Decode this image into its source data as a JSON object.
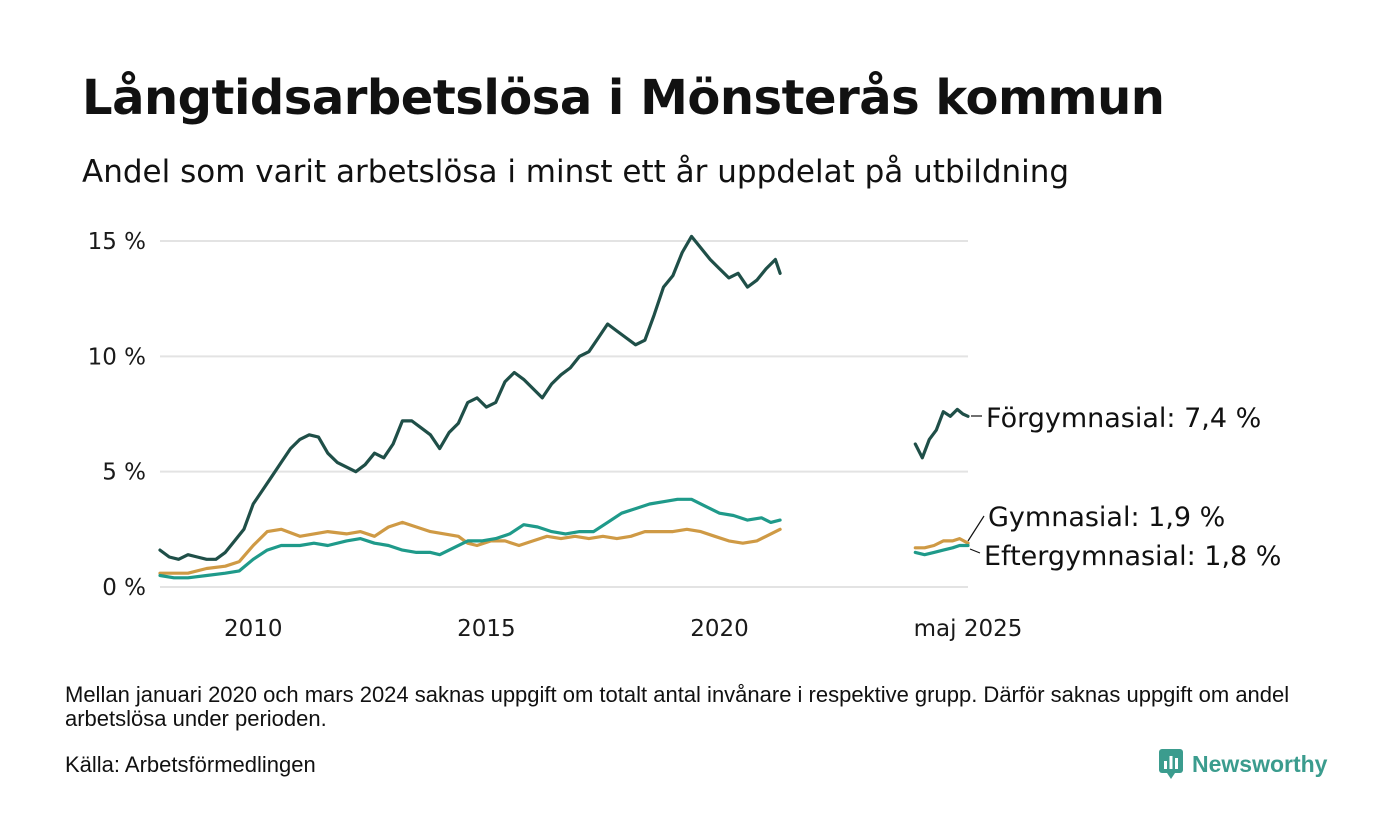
{
  "header": {
    "title": "Långtidsarbetslösa i Mönsterås kommun",
    "subtitle": "Andel som varit arbetslösa i minst ett år uppdelat på utbildning"
  },
  "footer": {
    "note": "Mellan januari 2020 och mars 2024 saknas uppgift om totalt antal invånare i respektive grupp. Därför saknas uppgift om andel arbetslösa under perioden.",
    "source": "Källa: Arbetsförmedlingen",
    "brand": "Newsworthy",
    "brand_icon": "newsworthy-logo-icon",
    "brand_color": "#3b9c8e"
  },
  "chart_data": {
    "type": "line",
    "title": "Långtidsarbetslösa i Mönsterås kommun",
    "subtitle": "Andel som varit arbetslösa i minst ett år uppdelat på utbildning",
    "xlabel": "",
    "ylabel": "",
    "ylim": [
      0,
      15
    ],
    "y_ticks": [
      {
        "value": 0,
        "label": "0 %"
      },
      {
        "value": 5,
        "label": "5 %"
      },
      {
        "value": 10,
        "label": "10 %"
      },
      {
        "value": 15,
        "label": "15 %"
      }
    ],
    "x_ticks": [
      {
        "value": 2010,
        "label": "2010"
      },
      {
        "value": 2015,
        "label": "2015"
      },
      {
        "value": 2020,
        "label": "2020"
      },
      {
        "value": 2025.33,
        "label": "maj 2025"
      }
    ],
    "xlim": [
      2008.0,
      2025.33
    ],
    "grid": true,
    "series": [
      {
        "name": "Förgymnasial",
        "end_label": "Förgymnasial: 7,4 %",
        "color": "#1f4f48",
        "segments": [
          [
            [
              2008.0,
              1.6
            ],
            [
              2008.2,
              1.3
            ],
            [
              2008.4,
              1.2
            ],
            [
              2008.6,
              1.4
            ],
            [
              2008.8,
              1.3
            ],
            [
              2009.0,
              1.2
            ],
            [
              2009.2,
              1.2
            ],
            [
              2009.4,
              1.5
            ],
            [
              2009.6,
              2.0
            ],
            [
              2009.8,
              2.5
            ],
            [
              2010.0,
              3.6
            ],
            [
              2010.2,
              4.2
            ],
            [
              2010.4,
              4.8
            ],
            [
              2010.6,
              5.4
            ],
            [
              2010.8,
              6.0
            ],
            [
              2011.0,
              6.4
            ],
            [
              2011.2,
              6.6
            ],
            [
              2011.4,
              6.5
            ],
            [
              2011.6,
              5.8
            ],
            [
              2011.8,
              5.4
            ],
            [
              2012.0,
              5.2
            ],
            [
              2012.2,
              5.0
            ],
            [
              2012.4,
              5.3
            ],
            [
              2012.6,
              5.8
            ],
            [
              2012.8,
              5.6
            ],
            [
              2013.0,
              6.2
            ],
            [
              2013.2,
              7.2
            ],
            [
              2013.4,
              7.2
            ],
            [
              2013.6,
              6.9
            ],
            [
              2013.8,
              6.6
            ],
            [
              2014.0,
              6.0
            ],
            [
              2014.2,
              6.7
            ],
            [
              2014.4,
              7.1
            ],
            [
              2014.6,
              8.0
            ],
            [
              2014.8,
              8.2
            ],
            [
              2015.0,
              7.8
            ],
            [
              2015.2,
              8.0
            ],
            [
              2015.4,
              8.9
            ],
            [
              2015.6,
              9.3
            ],
            [
              2015.8,
              9.0
            ],
            [
              2016.0,
              8.6
            ],
            [
              2016.2,
              8.2
            ],
            [
              2016.4,
              8.8
            ],
            [
              2016.6,
              9.2
            ],
            [
              2016.8,
              9.5
            ],
            [
              2017.0,
              10.0
            ],
            [
              2017.2,
              10.2
            ],
            [
              2017.4,
              10.8
            ],
            [
              2017.6,
              11.4
            ],
            [
              2017.8,
              11.1
            ],
            [
              2018.0,
              10.8
            ],
            [
              2018.2,
              10.5
            ],
            [
              2018.4,
              10.7
            ],
            [
              2018.6,
              11.8
            ],
            [
              2018.8,
              13.0
            ],
            [
              2019.0,
              13.5
            ],
            [
              2019.2,
              14.5
            ],
            [
              2019.4,
              15.2
            ],
            [
              2019.6,
              14.7
            ],
            [
              2019.8,
              14.2
            ],
            [
              2020.0,
              13.8
            ],
            [
              2020.2,
              13.4
            ],
            [
              2020.4,
              13.6
            ],
            [
              2020.6,
              13.0
            ],
            [
              2020.8,
              13.3
            ],
            [
              2021.0,
              13.8
            ],
            [
              2021.2,
              14.2
            ],
            [
              2021.3,
              13.6
            ]
          ],
          [
            [
              2024.2,
              6.2
            ],
            [
              2024.35,
              5.6
            ],
            [
              2024.5,
              6.4
            ],
            [
              2024.65,
              6.8
            ],
            [
              2024.8,
              7.6
            ],
            [
              2024.95,
              7.4
            ],
            [
              2025.1,
              7.7
            ],
            [
              2025.22,
              7.5
            ],
            [
              2025.33,
              7.4
            ]
          ]
        ]
      },
      {
        "name": "Gymnasial",
        "end_label": "Gymnasial: 1,9 %",
        "color": "#cf9a45",
        "segments": [
          [
            [
              2008.0,
              0.6
            ],
            [
              2008.3,
              0.6
            ],
            [
              2008.6,
              0.6
            ],
            [
              2009.0,
              0.8
            ],
            [
              2009.4,
              0.9
            ],
            [
              2009.7,
              1.1
            ],
            [
              2010.0,
              1.8
            ],
            [
              2010.3,
              2.4
            ],
            [
              2010.6,
              2.5
            ],
            [
              2011.0,
              2.2
            ],
            [
              2011.3,
              2.3
            ],
            [
              2011.6,
              2.4
            ],
            [
              2012.0,
              2.3
            ],
            [
              2012.3,
              2.4
            ],
            [
              2012.6,
              2.2
            ],
            [
              2012.9,
              2.6
            ],
            [
              2013.2,
              2.8
            ],
            [
              2013.5,
              2.6
            ],
            [
              2013.8,
              2.4
            ],
            [
              2014.1,
              2.3
            ],
            [
              2014.4,
              2.2
            ],
            [
              2014.6,
              1.9
            ],
            [
              2014.8,
              1.8
            ],
            [
              2015.1,
              2.0
            ],
            [
              2015.4,
              2.0
            ],
            [
              2015.7,
              1.8
            ],
            [
              2016.0,
              2.0
            ],
            [
              2016.3,
              2.2
            ],
            [
              2016.6,
              2.1
            ],
            [
              2016.9,
              2.2
            ],
            [
              2017.2,
              2.1
            ],
            [
              2017.5,
              2.2
            ],
            [
              2017.8,
              2.1
            ],
            [
              2018.1,
              2.2
            ],
            [
              2018.4,
              2.4
            ],
            [
              2018.7,
              2.4
            ],
            [
              2019.0,
              2.4
            ],
            [
              2019.3,
              2.5
            ],
            [
              2019.6,
              2.4
            ],
            [
              2019.9,
              2.2
            ],
            [
              2020.2,
              2.0
            ],
            [
              2020.5,
              1.9
            ],
            [
              2020.8,
              2.0
            ],
            [
              2021.0,
              2.2
            ],
            [
              2021.3,
              2.5
            ]
          ],
          [
            [
              2024.2,
              1.7
            ],
            [
              2024.4,
              1.7
            ],
            [
              2024.6,
              1.8
            ],
            [
              2024.8,
              2.0
            ],
            [
              2025.0,
              2.0
            ],
            [
              2025.15,
              2.1
            ],
            [
              2025.33,
              1.9
            ]
          ]
        ]
      },
      {
        "name": "Eftergymnasial",
        "end_label": "Eftergymnasial: 1,8 %",
        "color": "#1f9a8a",
        "segments": [
          [
            [
              2008.0,
              0.5
            ],
            [
              2008.3,
              0.4
            ],
            [
              2008.6,
              0.4
            ],
            [
              2009.0,
              0.5
            ],
            [
              2009.4,
              0.6
            ],
            [
              2009.7,
              0.7
            ],
            [
              2010.0,
              1.2
            ],
            [
              2010.3,
              1.6
            ],
            [
              2010.6,
              1.8
            ],
            [
              2011.0,
              1.8
            ],
            [
              2011.3,
              1.9
            ],
            [
              2011.6,
              1.8
            ],
            [
              2012.0,
              2.0
            ],
            [
              2012.3,
              2.1
            ],
            [
              2012.6,
              1.9
            ],
            [
              2012.9,
              1.8
            ],
            [
              2013.2,
              1.6
            ],
            [
              2013.5,
              1.5
            ],
            [
              2013.8,
              1.5
            ],
            [
              2014.0,
              1.4
            ],
            [
              2014.3,
              1.7
            ],
            [
              2014.6,
              2.0
            ],
            [
              2014.9,
              2.0
            ],
            [
              2015.2,
              2.1
            ],
            [
              2015.5,
              2.3
            ],
            [
              2015.8,
              2.7
            ],
            [
              2016.1,
              2.6
            ],
            [
              2016.4,
              2.4
            ],
            [
              2016.7,
              2.3
            ],
            [
              2017.0,
              2.4
            ],
            [
              2017.3,
              2.4
            ],
            [
              2017.6,
              2.8
            ],
            [
              2017.9,
              3.2
            ],
            [
              2018.2,
              3.4
            ],
            [
              2018.5,
              3.6
            ],
            [
              2018.8,
              3.7
            ],
            [
              2019.1,
              3.8
            ],
            [
              2019.4,
              3.8
            ],
            [
              2019.7,
              3.5
            ],
            [
              2020.0,
              3.2
            ],
            [
              2020.3,
              3.1
            ],
            [
              2020.6,
              2.9
            ],
            [
              2020.9,
              3.0
            ],
            [
              2021.1,
              2.8
            ],
            [
              2021.3,
              2.9
            ]
          ],
          [
            [
              2024.2,
              1.5
            ],
            [
              2024.4,
              1.4
            ],
            [
              2024.6,
              1.5
            ],
            [
              2024.8,
              1.6
            ],
            [
              2025.0,
              1.7
            ],
            [
              2025.15,
              1.8
            ],
            [
              2025.33,
              1.8
            ]
          ]
        ]
      }
    ]
  }
}
